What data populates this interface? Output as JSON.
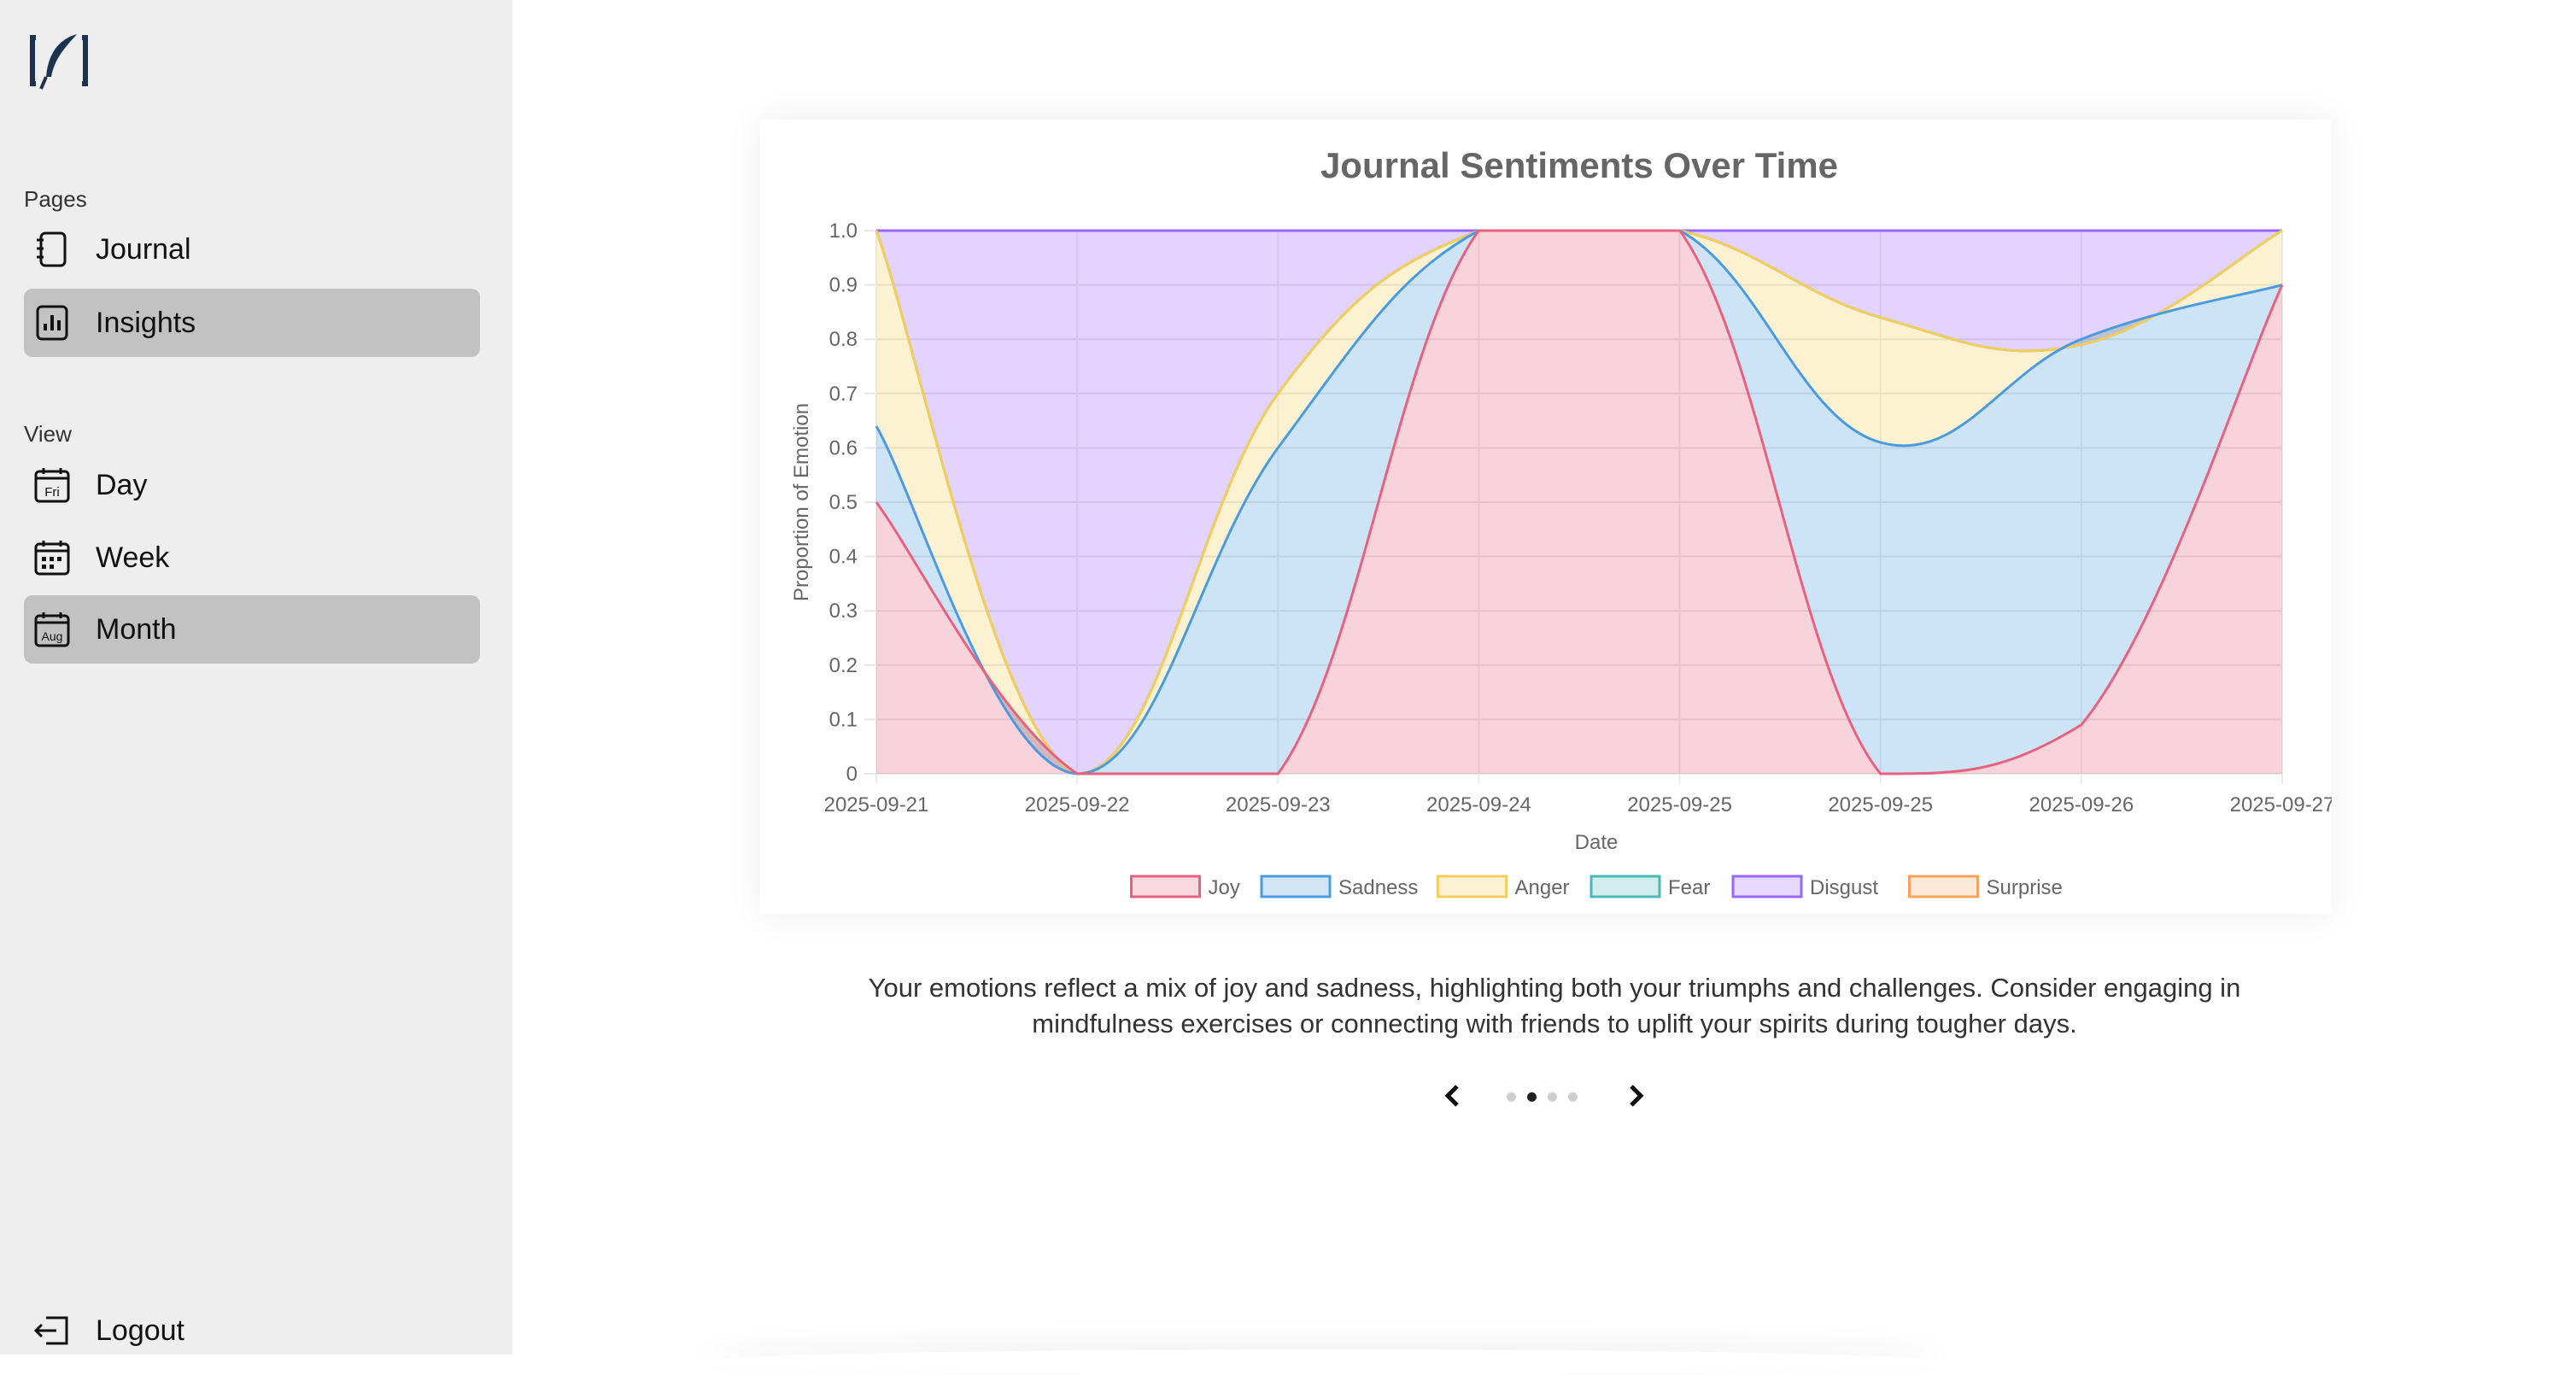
{
  "sidebar": {
    "pages_label": "Pages",
    "view_label": "View",
    "pages": [
      {
        "label": "Journal",
        "icon": "notebook-icon",
        "active": false
      },
      {
        "label": "Insights",
        "icon": "bar-chart-icon",
        "active": true
      }
    ],
    "views": [
      {
        "label": "Day",
        "icon": "calendar-day-icon",
        "icon_text": "Fri",
        "active": false
      },
      {
        "label": "Week",
        "icon": "calendar-week-icon",
        "active": false
      },
      {
        "label": "Month",
        "icon": "calendar-month-icon",
        "icon_text": "Aug",
        "active": true
      }
    ],
    "logout_label": "Logout",
    "logo_icon": "quill-logo-icon"
  },
  "chart_data": {
    "type": "area",
    "stacked": true,
    "title": "Journal Sentiments Over Time",
    "xlabel": "Date",
    "ylabel": "Proportion of Emotion",
    "ylim": [
      0,
      1
    ],
    "yticks": [
      "0",
      "0.1",
      "0.2",
      "0.3",
      "0.4",
      "0.5",
      "0.6",
      "0.7",
      "0.8",
      "0.9",
      "1.0"
    ],
    "categories": [
      "2025-09-21",
      "2025-09-22",
      "2025-09-23",
      "2025-09-24",
      "2025-09-25",
      "2025-09-25",
      "2025-09-26",
      "2025-09-27"
    ],
    "legend_position": "bottom",
    "series": [
      {
        "name": "Joy",
        "color": "#e8627f",
        "cumulative": [
          0.5,
          0,
          0,
          1.0,
          1.0,
          0,
          0.09,
          0.9
        ]
      },
      {
        "name": "Sadness",
        "color": "#4a9be0",
        "cumulative": [
          0.64,
          0,
          0.6,
          1.0,
          1.0,
          0.61,
          0.8,
          0.9
        ]
      },
      {
        "name": "Anger",
        "color": "#f5cd5b",
        "cumulative": [
          1.0,
          0,
          0.7,
          1.0,
          1.0,
          0.84,
          0.79,
          1.0
        ]
      },
      {
        "name": "Fear",
        "color": "#4bb9b9",
        "cumulative": [
          1.0,
          0,
          0.7,
          1.0,
          1.0,
          0.84,
          0.79,
          1.0
        ]
      },
      {
        "name": "Disgust",
        "color": "#9966ff",
        "cumulative": [
          1.0,
          1.0,
          1.0,
          1.0,
          1.0,
          1.0,
          1.0,
          1.0
        ]
      },
      {
        "name": "Surprise",
        "color": "#f5a45b",
        "cumulative": [
          1.0,
          1.0,
          1.0,
          1.0,
          1.0,
          1.0,
          1.0,
          1.0
        ]
      }
    ]
  },
  "summary": {
    "text": "Your emotions reflect a mix of joy and sadness, highlighting both your triumphs and challenges. Consider engaging in mindfulness exercises or connecting with friends to uplift your spirits during tougher days."
  },
  "pager": {
    "prev_icon": "chevron-left-icon",
    "next_icon": "chevron-right-icon",
    "pages": 4,
    "active_page": 2
  }
}
